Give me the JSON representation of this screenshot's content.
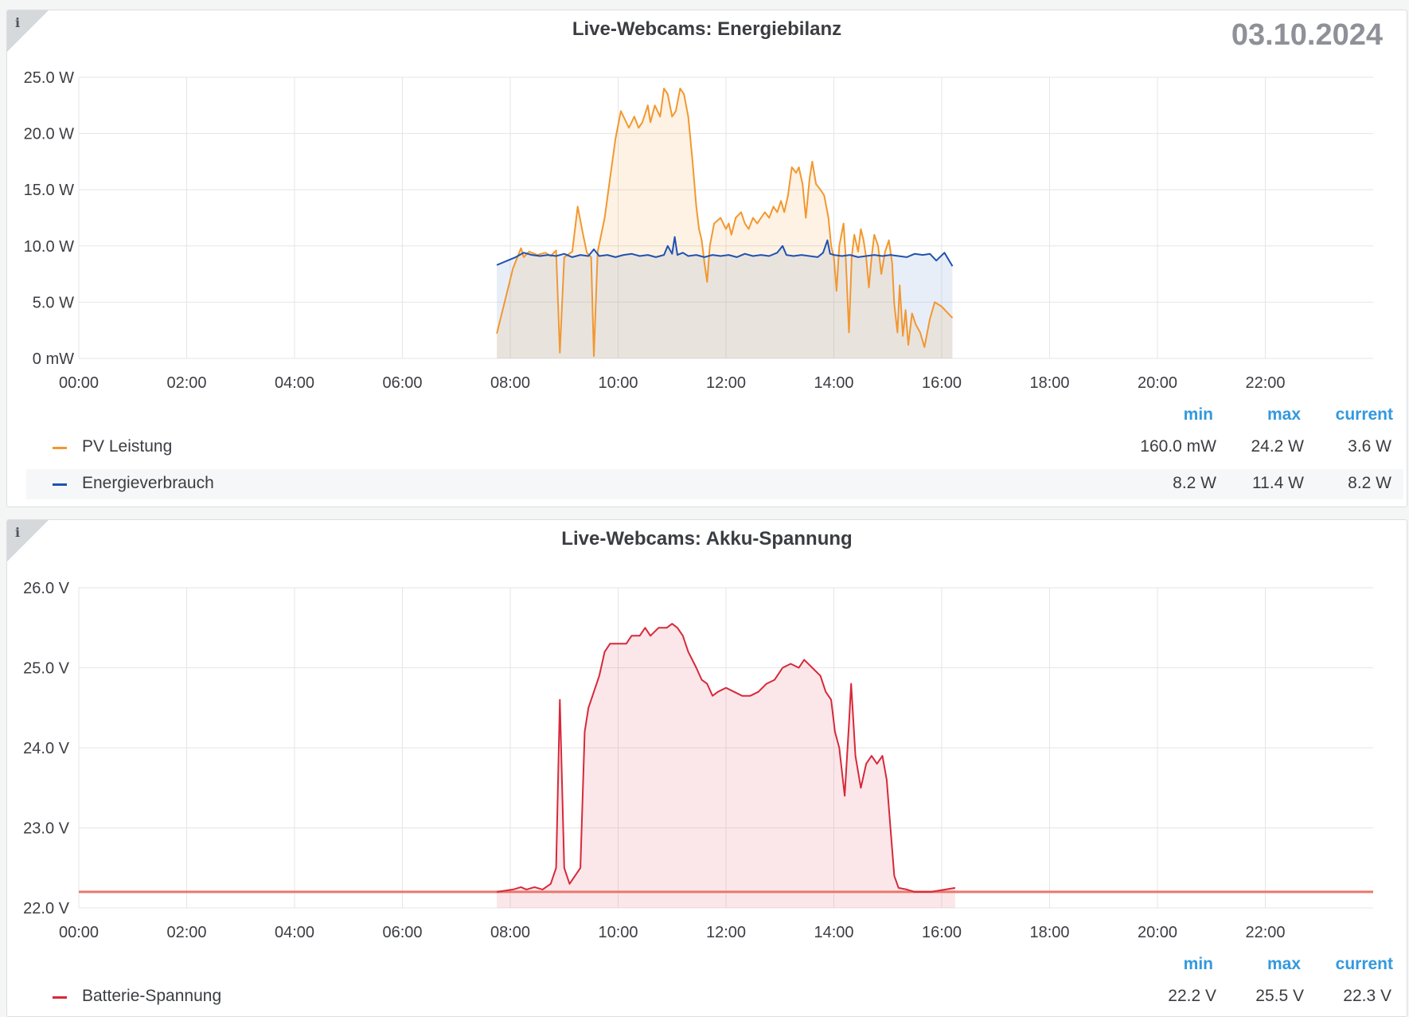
{
  "chart_data": [
    {
      "type": "area",
      "title": "Live-Webcams: Energiebilanz",
      "date": "03.10.2024",
      "x_ticks": [
        "00:00",
        "02:00",
        "04:00",
        "06:00",
        "08:00",
        "10:00",
        "12:00",
        "14:00",
        "16:00",
        "18:00",
        "20:00",
        "22:00"
      ],
      "y_ticks": [
        "0 mW",
        "5.0 W",
        "10.0 W",
        "15.0 W",
        "20.0 W",
        "25.0 W"
      ],
      "ylim": [
        0,
        25
      ],
      "xlim_hours": [
        0,
        24
      ],
      "grid": true,
      "legend_placement": "bottom",
      "legend_headers": [
        "min",
        "max",
        "current"
      ],
      "series": [
        {
          "name": "PV Leistung",
          "color": "#f2982f",
          "fill": "rgba(242,152,47,0.13)",
          "stats": {
            "min": "160.0 mW",
            "max": "24.2 W",
            "current": "3.6 W"
          },
          "points": [
            [
              7.75,
              2.2
            ],
            [
              8.05,
              8.0
            ],
            [
              8.2,
              9.8
            ],
            [
              8.25,
              9.0
            ],
            [
              8.35,
              9.5
            ],
            [
              8.5,
              9.2
            ],
            [
              8.65,
              9.4
            ],
            [
              8.75,
              9.1
            ],
            [
              8.85,
              9.6
            ],
            [
              8.92,
              0.5
            ],
            [
              9.0,
              9.0
            ],
            [
              9.15,
              9.5
            ],
            [
              9.25,
              13.5
            ],
            [
              9.35,
              11.0
            ],
            [
              9.42,
              9.4
            ],
            [
              9.5,
              9.0
            ],
            [
              9.55,
              0.2
            ],
            [
              9.62,
              9.5
            ],
            [
              9.75,
              12.5
            ],
            [
              9.85,
              16.0
            ],
            [
              9.95,
              19.5
            ],
            [
              10.05,
              22.0
            ],
            [
              10.15,
              21.0
            ],
            [
              10.2,
              20.5
            ],
            [
              10.3,
              21.5
            ],
            [
              10.38,
              20.5
            ],
            [
              10.45,
              21.0
            ],
            [
              10.55,
              22.5
            ],
            [
              10.6,
              21.0
            ],
            [
              10.68,
              22.5
            ],
            [
              10.78,
              21.5
            ],
            [
              10.85,
              24.0
            ],
            [
              10.92,
              23.5
            ],
            [
              11.0,
              21.5
            ],
            [
              11.07,
              22.0
            ],
            [
              11.15,
              24.0
            ],
            [
              11.22,
              23.5
            ],
            [
              11.3,
              21.5
            ],
            [
              11.38,
              17.5
            ],
            [
              11.45,
              13.5
            ],
            [
              11.5,
              11.5
            ],
            [
              11.55,
              10.5
            ],
            [
              11.6,
              8.5
            ],
            [
              11.65,
              6.8
            ],
            [
              11.7,
              10.0
            ],
            [
              11.78,
              12.0
            ],
            [
              11.9,
              12.5
            ],
            [
              12.0,
              11.5
            ],
            [
              12.05,
              12.0
            ],
            [
              12.1,
              11.0
            ],
            [
              12.18,
              12.5
            ],
            [
              12.28,
              13.0
            ],
            [
              12.35,
              12.0
            ],
            [
              12.42,
              11.5
            ],
            [
              12.5,
              12.5
            ],
            [
              12.58,
              12.0
            ],
            [
              12.65,
              12.5
            ],
            [
              12.72,
              13.0
            ],
            [
              12.8,
              12.5
            ],
            [
              12.88,
              13.5
            ],
            [
              12.95,
              13.0
            ],
            [
              13.02,
              14.0
            ],
            [
              13.08,
              13.0
            ],
            [
              13.15,
              14.5
            ],
            [
              13.22,
              17.0
            ],
            [
              13.3,
              16.5
            ],
            [
              13.35,
              17.0
            ],
            [
              13.42,
              15.5
            ],
            [
              13.48,
              12.5
            ],
            [
              13.55,
              16.0
            ],
            [
              13.6,
              17.5
            ],
            [
              13.67,
              15.5
            ],
            [
              13.75,
              15.0
            ],
            [
              13.82,
              14.5
            ],
            [
              13.9,
              12.5
            ],
            [
              13.95,
              10.0
            ],
            [
              14.0,
              9.0
            ],
            [
              14.05,
              6.0
            ],
            [
              14.1,
              10.0
            ],
            [
              14.18,
              12.0
            ],
            [
              14.22,
              9.0
            ],
            [
              14.28,
              2.3
            ],
            [
              14.33,
              9.0
            ],
            [
              14.38,
              11.0
            ],
            [
              14.45,
              9.5
            ],
            [
              14.5,
              11.5
            ],
            [
              14.55,
              10.5
            ],
            [
              14.6,
              9.0
            ],
            [
              14.65,
              6.3
            ],
            [
              14.7,
              9.0
            ],
            [
              14.75,
              11.0
            ],
            [
              14.82,
              10.0
            ],
            [
              14.88,
              7.5
            ],
            [
              14.95,
              9.5
            ],
            [
              15.02,
              10.5
            ],
            [
              15.08,
              8.5
            ],
            [
              15.12,
              4.8
            ],
            [
              15.18,
              2.3
            ],
            [
              15.22,
              6.5
            ],
            [
              15.28,
              2.0
            ],
            [
              15.33,
              4.3
            ],
            [
              15.38,
              1.2
            ],
            [
              15.45,
              4.0
            ],
            [
              15.52,
              3.0
            ],
            [
              15.6,
              2.3
            ],
            [
              15.68,
              1.0
            ],
            [
              15.78,
              3.5
            ],
            [
              15.87,
              5.0
            ],
            [
              16.0,
              4.6
            ],
            [
              16.2,
              3.6
            ]
          ]
        },
        {
          "name": "Energieverbrauch",
          "color": "#1f52b0",
          "fill": "rgba(140,170,220,0.20)",
          "stats": {
            "min": "8.2 W",
            "max": "11.4 W",
            "current": "8.2 W"
          },
          "points": [
            [
              7.75,
              8.3
            ],
            [
              8.1,
              9.0
            ],
            [
              8.25,
              9.4
            ],
            [
              8.4,
              9.2
            ],
            [
              8.55,
              9.1
            ],
            [
              8.7,
              9.2
            ],
            [
              8.85,
              9.1
            ],
            [
              9.0,
              9.3
            ],
            [
              9.15,
              9.0
            ],
            [
              9.3,
              9.2
            ],
            [
              9.45,
              9.1
            ],
            [
              9.55,
              9.7
            ],
            [
              9.65,
              9.1
            ],
            [
              9.8,
              9.2
            ],
            [
              9.95,
              9.0
            ],
            [
              10.1,
              9.2
            ],
            [
              10.25,
              9.3
            ],
            [
              10.4,
              9.1
            ],
            [
              10.55,
              9.2
            ],
            [
              10.7,
              9.0
            ],
            [
              10.85,
              9.2
            ],
            [
              10.92,
              10.0
            ],
            [
              11.0,
              9.3
            ],
            [
              11.05,
              10.8
            ],
            [
              11.1,
              9.2
            ],
            [
              11.2,
              9.4
            ],
            [
              11.3,
              9.1
            ],
            [
              11.45,
              9.2
            ],
            [
              11.6,
              9.0
            ],
            [
              11.75,
              9.2
            ],
            [
              11.9,
              9.1
            ],
            [
              12.05,
              9.2
            ],
            [
              12.2,
              9.0
            ],
            [
              12.35,
              9.3
            ],
            [
              12.5,
              9.1
            ],
            [
              12.65,
              9.2
            ],
            [
              12.8,
              9.1
            ],
            [
              12.95,
              9.4
            ],
            [
              13.05,
              10.0
            ],
            [
              13.12,
              9.2
            ],
            [
              13.25,
              9.1
            ],
            [
              13.4,
              9.2
            ],
            [
              13.55,
              9.1
            ],
            [
              13.7,
              9.0
            ],
            [
              13.8,
              9.4
            ],
            [
              13.88,
              10.5
            ],
            [
              13.93,
              9.3
            ],
            [
              14.0,
              9.2
            ],
            [
              14.15,
              9.1
            ],
            [
              14.3,
              9.2
            ],
            [
              14.45,
              9.0
            ],
            [
              14.6,
              9.1
            ],
            [
              14.75,
              9.2
            ],
            [
              14.9,
              9.1
            ],
            [
              15.05,
              9.2
            ],
            [
              15.2,
              9.1
            ],
            [
              15.35,
              9.0
            ],
            [
              15.5,
              9.3
            ],
            [
              15.65,
              9.2
            ],
            [
              15.78,
              9.3
            ],
            [
              15.9,
              8.7
            ],
            [
              16.05,
              9.4
            ],
            [
              16.2,
              8.2
            ]
          ]
        }
      ]
    },
    {
      "type": "area",
      "title": "Live-Webcams: Akku-Spannung",
      "x_ticks": [
        "00:00",
        "02:00",
        "04:00",
        "06:00",
        "08:00",
        "10:00",
        "12:00",
        "14:00",
        "16:00",
        "18:00",
        "20:00",
        "22:00"
      ],
      "y_ticks": [
        "22.0 V",
        "23.0 V",
        "24.0 V",
        "25.0 V",
        "26.0 V"
      ],
      "ylim": [
        22,
        26
      ],
      "xlim_hours": [
        0,
        24
      ],
      "grid": true,
      "threshold": 22.2,
      "threshold_color": "#e9786f",
      "legend_placement": "bottom",
      "legend_headers": [
        "min",
        "max",
        "current"
      ],
      "series": [
        {
          "name": "Batterie-Spannung",
          "color": "#d8283a",
          "fill": "rgba(232,122,134,0.18)",
          "stats": {
            "min": "22.2 V",
            "max": "25.5 V",
            "current": "22.3 V"
          },
          "points": [
            [
              7.75,
              22.2
            ],
            [
              8.05,
              22.23
            ],
            [
              8.2,
              22.26
            ],
            [
              8.3,
              22.23
            ],
            [
              8.45,
              22.26
            ],
            [
              8.6,
              22.23
            ],
            [
              8.75,
              22.3
            ],
            [
              8.85,
              22.5
            ],
            [
              8.92,
              24.6
            ],
            [
              9.0,
              22.5
            ],
            [
              9.1,
              22.3
            ],
            [
              9.2,
              22.4
            ],
            [
              9.3,
              22.5
            ],
            [
              9.38,
              24.2
            ],
            [
              9.45,
              24.5
            ],
            [
              9.55,
              24.7
            ],
            [
              9.65,
              24.9
            ],
            [
              9.75,
              25.2
            ],
            [
              9.85,
              25.3
            ],
            [
              10.0,
              25.3
            ],
            [
              10.15,
              25.3
            ],
            [
              10.25,
              25.4
            ],
            [
              10.4,
              25.4
            ],
            [
              10.5,
              25.5
            ],
            [
              10.6,
              25.4
            ],
            [
              10.75,
              25.5
            ],
            [
              10.9,
              25.5
            ],
            [
              11.0,
              25.55
            ],
            [
              11.1,
              25.5
            ],
            [
              11.2,
              25.4
            ],
            [
              11.3,
              25.2
            ],
            [
              11.45,
              25.0
            ],
            [
              11.55,
              24.85
            ],
            [
              11.65,
              24.8
            ],
            [
              11.75,
              24.65
            ],
            [
              11.85,
              24.7
            ],
            [
              12.0,
              24.75
            ],
            [
              12.15,
              24.7
            ],
            [
              12.3,
              24.65
            ],
            [
              12.45,
              24.65
            ],
            [
              12.6,
              24.7
            ],
            [
              12.75,
              24.8
            ],
            [
              12.9,
              24.85
            ],
            [
              13.05,
              25.0
            ],
            [
              13.2,
              25.05
            ],
            [
              13.35,
              25.0
            ],
            [
              13.45,
              25.1
            ],
            [
              13.6,
              25.0
            ],
            [
              13.75,
              24.9
            ],
            [
              13.85,
              24.7
            ],
            [
              13.95,
              24.6
            ],
            [
              14.02,
              24.2
            ],
            [
              14.1,
              24.0
            ],
            [
              14.2,
              23.4
            ],
            [
              14.28,
              24.3
            ],
            [
              14.32,
              24.8
            ],
            [
              14.4,
              23.9
            ],
            [
              14.5,
              23.5
            ],
            [
              14.6,
              23.8
            ],
            [
              14.7,
              23.9
            ],
            [
              14.8,
              23.8
            ],
            [
              14.9,
              23.9
            ],
            [
              14.98,
              23.6
            ],
            [
              15.05,
              23.0
            ],
            [
              15.12,
              22.4
            ],
            [
              15.2,
              22.25
            ],
            [
              15.35,
              22.23
            ],
            [
              15.5,
              22.2
            ],
            [
              15.8,
              22.2
            ],
            [
              16.25,
              22.25
            ]
          ]
        }
      ]
    }
  ]
}
